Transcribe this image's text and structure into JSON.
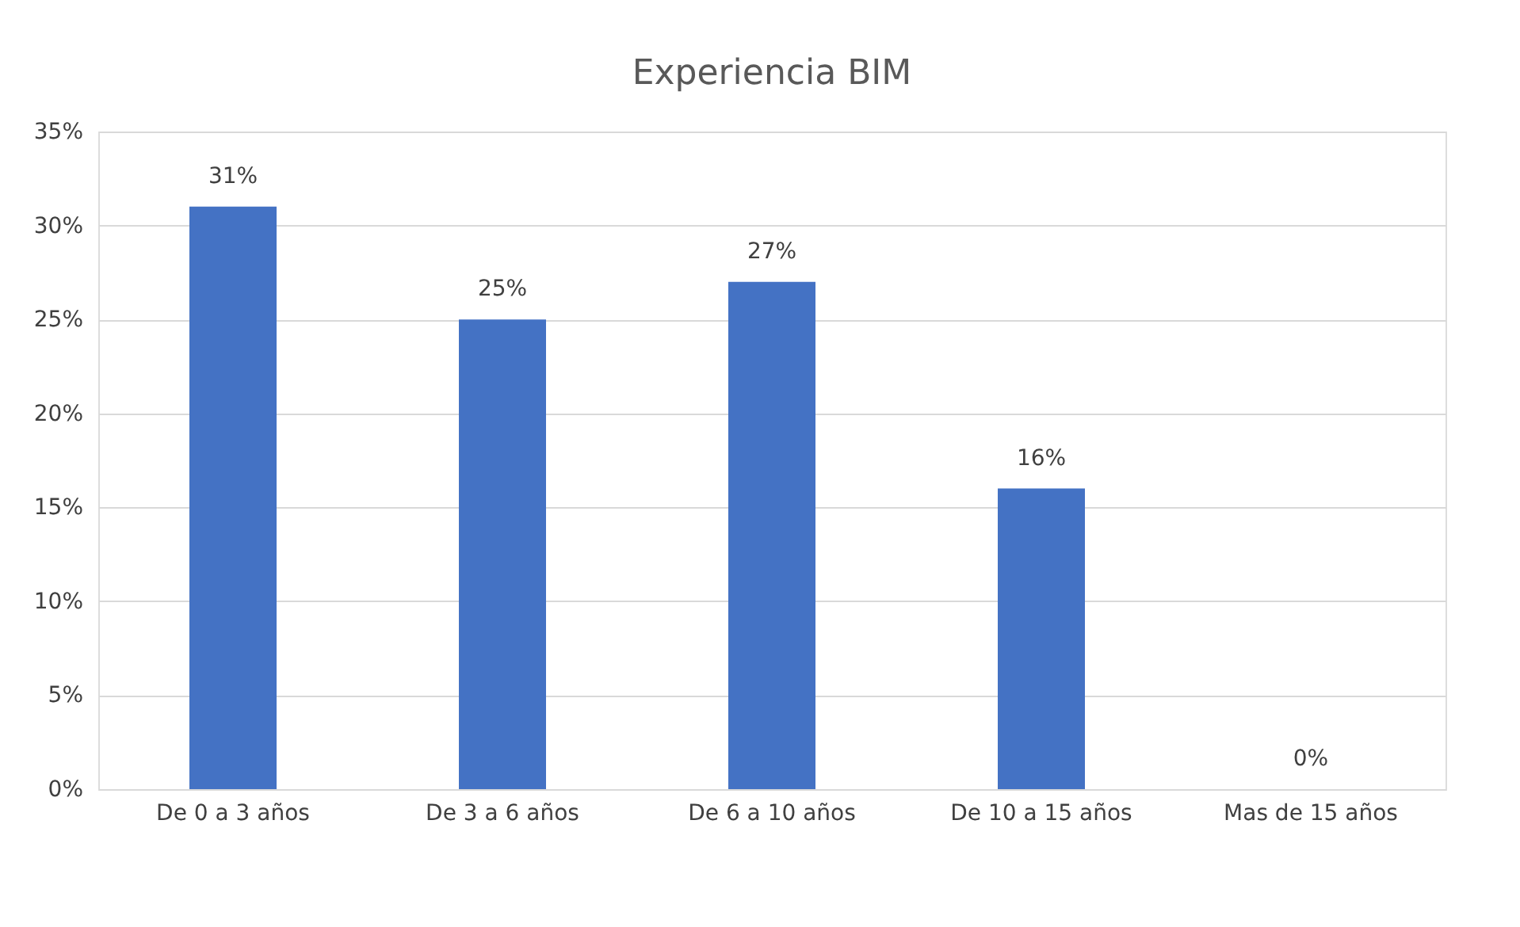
{
  "chart_data": {
    "type": "bar",
    "title": "Experiencia BIM",
    "categories": [
      "De 0 a 3 años",
      "De 3 a 6 años",
      "De 6 a 10 años",
      "De 10 a 15 años",
      "Mas de 15 años"
    ],
    "values": [
      31,
      25,
      27,
      16,
      0
    ],
    "color": "#4472c4",
    "ylim": [
      0,
      35
    ],
    "yticks": [
      {
        "value": 0,
        "label": "0%"
      },
      {
        "value": 5,
        "label": "5%"
      },
      {
        "value": 10,
        "label": "10%"
      },
      {
        "value": 15,
        "label": "15%"
      },
      {
        "value": 20,
        "label": "20%"
      },
      {
        "value": 25,
        "label": "25%"
      },
      {
        "value": 30,
        "label": "30%"
      },
      {
        "value": 35,
        "label": "35%"
      }
    ],
    "value_labels": [
      "31%",
      "25%",
      "27%",
      "16%",
      "0%"
    ],
    "grid": "y"
  }
}
